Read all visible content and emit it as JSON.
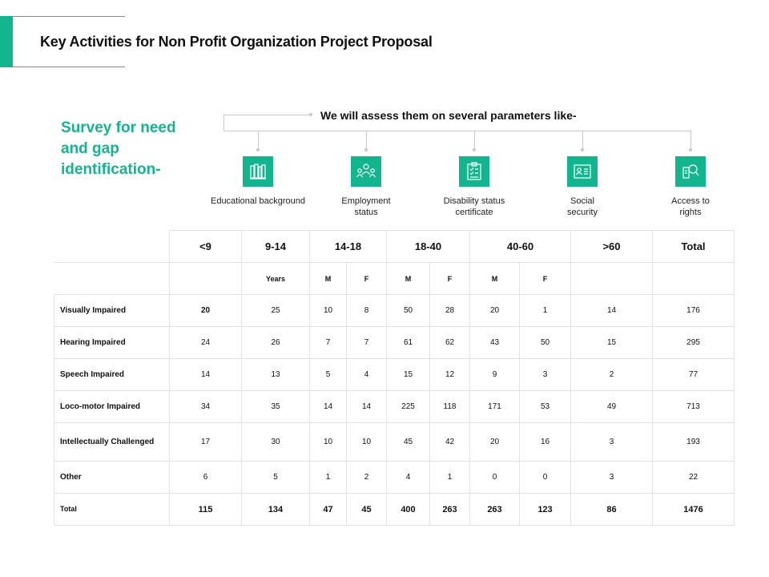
{
  "header": {
    "title": "Key Activities for Non Profit Organization Project Proposal"
  },
  "survey_heading": "Survey for need and gap identification-",
  "assess_text": "We will assess them on several parameters like-",
  "colors": {
    "accent": "#13b58f",
    "connector": "#c8c8c8",
    "grid": "#e2e2e2"
  },
  "parameters": [
    {
      "label": "Educational background",
      "icon": "books-icon"
    },
    {
      "label": "Employment status",
      "icon": "employees-icon"
    },
    {
      "label": "Disability status certificate",
      "icon": "checklist-icon"
    },
    {
      "label": "Social security",
      "icon": "id-card-icon"
    },
    {
      "label": "Access to rights",
      "icon": "magnifier-icon"
    }
  ],
  "table": {
    "age_groups": [
      "<9",
      "9-14",
      "14-18",
      "18-40",
      "40-60",
      ">60",
      "Total"
    ],
    "sub_headers": [
      "Years",
      "M",
      "F",
      "M",
      "F",
      "M",
      "F"
    ],
    "rows": [
      {
        "label": "Visually Impaired",
        "values": [
          "20",
          "25",
          "10",
          "8",
          "50",
          "28",
          "20",
          "1",
          "14",
          "176"
        ]
      },
      {
        "label": "Hearing Impaired",
        "values": [
          "24",
          "26",
          "7",
          "7",
          "61",
          "62",
          "43",
          "50",
          "15",
          "295"
        ]
      },
      {
        "label": "Speech Impaired",
        "values": [
          "14",
          "13",
          "5",
          "4",
          "15",
          "12",
          "9",
          "3",
          "2",
          "77"
        ]
      },
      {
        "label": "Loco-motor Impaired",
        "values": [
          "34",
          "35",
          "14",
          "14",
          "225",
          "118",
          "171",
          "53",
          "49",
          "713"
        ]
      },
      {
        "label": "Intellectually Challenged",
        "values": [
          "17",
          "30",
          "10",
          "10",
          "45",
          "42",
          "20",
          "16",
          "3",
          "193"
        ]
      },
      {
        "label": "Other",
        "values": [
          "6",
          "5",
          "1",
          "2",
          "4",
          "1",
          "0",
          "0",
          "3",
          "22"
        ]
      }
    ],
    "total": {
      "label": "Total",
      "values": [
        "115",
        "134",
        "47",
        "45",
        "400",
        "263",
        "263",
        "123",
        "86",
        "1476"
      ]
    }
  }
}
